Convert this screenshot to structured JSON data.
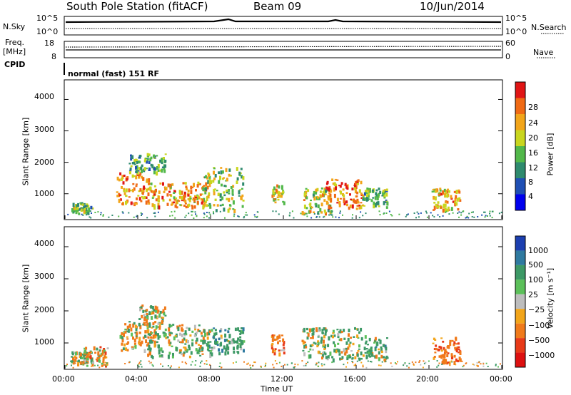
{
  "header": {
    "station": "South Pole Station (fitACF)",
    "beam": "Beam 09",
    "date": "10/Jun/2014"
  },
  "left_labels": {
    "nsky": "N.Sky",
    "freq_top": "Freq.",
    "freq_unit": "[MHz]",
    "cpid": "CPID"
  },
  "right_labels": {
    "nsearch": "N.Search",
    "nave": "Nave"
  },
  "ticks": {
    "n_top_left": "10^5",
    "n_bottom_left": "10^0",
    "n_top_right": "10^5",
    "n_bottom_right": "10^0",
    "freq_top": "18",
    "freq_bottom": "8",
    "nave_top": "60",
    "nave_bottom": "0"
  },
  "cpid_text": "normal (fast) 151 RF",
  "x_axis": {
    "label": "Time UT",
    "ticks": [
      "00:00",
      "04:00",
      "08:00",
      "12:00",
      "16:00",
      "20:00",
      "00:00"
    ]
  },
  "panels": {
    "power": {
      "ylabel": "Slant Range [km]",
      "yticks": [
        "1000",
        "2000",
        "3000",
        "4000"
      ],
      "colorbar_label": "Power [dB]",
      "colorbar_ticks": [
        "4",
        "8",
        "12",
        "16",
        "20",
        "24",
        "28"
      ]
    },
    "velocity": {
      "ylabel": "Slant Range [km]",
      "yticks": [
        "1000",
        "2000",
        "3000",
        "4000"
      ],
      "colorbar_label": "Velocity [m s⁻¹]",
      "colorbar_ticks": [
        "1000",
        "500",
        "100",
        "25",
        "−25",
        "−100",
        "−500",
        "−1000"
      ]
    }
  },
  "colors": {
    "power_scale": [
      "#0000ee",
      "#1f4fb4",
      "#2e8a6e",
      "#52b84a",
      "#c9d61e",
      "#f2a51a",
      "#f06a14",
      "#e01515"
    ],
    "velocity_scale": [
      "#1c3fb0",
      "#2f7aa0",
      "#3d9966",
      "#5cc05a",
      "#bdbdbd",
      "#f2a51a",
      "#f07a1a",
      "#e83a18",
      "#dd1010"
    ]
  },
  "chart_data": [
    {
      "type": "heatmap",
      "title": "Power",
      "xlabel": "Time UT",
      "ylabel": "Slant Range [km]",
      "xlim": [
        0,
        24
      ],
      "ylim": [
        200,
        4600
      ],
      "colorbar": {
        "label": "Power [dB]",
        "range": [
          0,
          32
        ],
        "ticks": [
          4,
          8,
          12,
          16,
          20,
          24,
          28
        ]
      },
      "blobs": [
        {
          "t": [
            0.3,
            1.5
          ],
          "range": [
            400,
            750
          ],
          "power": 14
        },
        {
          "t": [
            2.8,
            4.6
          ],
          "range": [
            700,
            1700
          ],
          "power": 24
        },
        {
          "t": [
            3.5,
            5.5
          ],
          "range": [
            1700,
            2300
          ],
          "power": 12
        },
        {
          "t": [
            4.5,
            7.8
          ],
          "range": [
            600,
            1400
          ],
          "power": 22
        },
        {
          "t": [
            7.5,
            9.8
          ],
          "range": [
            500,
            1900
          ],
          "power": 16
        },
        {
          "t": [
            11.3,
            12.0
          ],
          "range": [
            700,
            1300
          ],
          "power": 20
        },
        {
          "t": [
            13.0,
            14.6
          ],
          "range": [
            400,
            1200
          ],
          "power": 18
        },
        {
          "t": [
            14.3,
            16.3
          ],
          "range": [
            500,
            1500
          ],
          "power": 24
        },
        {
          "t": [
            16.3,
            17.7
          ],
          "range": [
            600,
            1200
          ],
          "power": 14
        },
        {
          "t": [
            20.1,
            21.7
          ],
          "range": [
            500,
            1200
          ],
          "power": 22
        }
      ],
      "series": [
        {
          "name": "N.Sky",
          "values": []
        },
        {
          "name": "N.Search",
          "values": []
        },
        {
          "name": "Freq.",
          "values": []
        },
        {
          "name": "Nave",
          "values": []
        }
      ]
    },
    {
      "type": "heatmap",
      "title": "Velocity",
      "xlabel": "Time UT",
      "ylabel": "Slant Range [km]",
      "xlim": [
        0,
        24
      ],
      "ylim": [
        200,
        4600
      ],
      "colorbar": {
        "label": "Velocity [m s⁻¹]",
        "range": [
          -1200,
          1200
        ],
        "ticks": [
          1000,
          500,
          100,
          25,
          -25,
          -100,
          -500,
          -1000
        ]
      },
      "blobs": [
        {
          "t": [
            0.3,
            1.5
          ],
          "range": [
            400,
            800
          ],
          "velocity": 100
        },
        {
          "t": [
            0.8,
            2.3
          ],
          "range": [
            300,
            900
          ],
          "velocity": -200
        },
        {
          "t": [
            3.0,
            5.0
          ],
          "range": [
            800,
            1700
          ],
          "velocity": -150
        },
        {
          "t": [
            4.0,
            5.5
          ],
          "range": [
            1600,
            2200
          ],
          "velocity": 0
        },
        {
          "t": [
            4.5,
            8.0
          ],
          "range": [
            600,
            1600
          ],
          "velocity": 120
        },
        {
          "t": [
            7.8,
            9.8
          ],
          "range": [
            700,
            1500
          ],
          "velocity": 300
        },
        {
          "t": [
            11.3,
            12.0
          ],
          "range": [
            700,
            1300
          ],
          "velocity": -300
        },
        {
          "t": [
            13.0,
            16.5
          ],
          "range": [
            500,
            1500
          ],
          "velocity": 150
        },
        {
          "t": [
            16.5,
            17.7
          ],
          "range": [
            500,
            1200
          ],
          "velocity": 200
        },
        {
          "t": [
            20.1,
            21.7
          ],
          "range": [
            400,
            1200
          ],
          "velocity": -400
        }
      ]
    }
  ]
}
